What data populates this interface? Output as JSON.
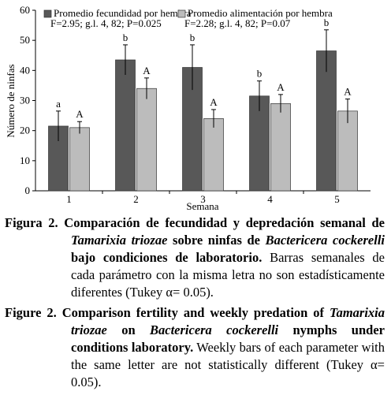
{
  "chart_data": {
    "type": "bar",
    "ylabel": "Número de ninfas",
    "xlabel": "Semana",
    "categories": [
      "1",
      "2",
      "3",
      "4",
      "5"
    ],
    "ylim": [
      0,
      60
    ],
    "yticks": [
      0,
      10,
      20,
      30,
      40,
      50,
      60
    ],
    "series": [
      {
        "name": "Promedio fecundidad por hembra",
        "color": "#585858",
        "stats": "F=2.95; g.l. 4, 82; P=0.025",
        "values": [
          21.5,
          43.5,
          41,
          31.5,
          46.5
        ],
        "errors": [
          5,
          5,
          7.5,
          5,
          7
        ],
        "letters": [
          "a",
          "b",
          "b",
          "b",
          "b"
        ]
      },
      {
        "name": "Promedio alimentación por hembra",
        "color": "#bcbcbc",
        "stats": "F=2.28; g.l. 4, 82; P=0.07",
        "values": [
          21,
          34,
          24,
          29,
          26.5
        ],
        "errors": [
          2,
          3.5,
          3,
          3,
          4
        ],
        "letters": [
          "A",
          "A",
          "A",
          "A",
          "A"
        ]
      }
    ]
  },
  "captions": [
    {
      "segments": [
        {
          "text": "Figura 2.",
          "style": "bold"
        },
        {
          "text": " Comparación de fecundidad y depredación semanal de ",
          "style": "bold"
        },
        {
          "text": "Tamarixia triozae",
          "style": "bold-italic"
        },
        {
          "text": " sobre ninfas de ",
          "style": "bold"
        },
        {
          "text": "Bactericera cockerelli",
          "style": "bold-italic"
        },
        {
          "text": " bajo condiciones de laboratorio.",
          "style": "bold"
        },
        {
          "text": " Barras semanales de cada parámetro con la misma letra no son estadísticamente diferentes (Tukey α= 0.05).",
          "style": "normal"
        }
      ]
    },
    {
      "segments": [
        {
          "text": "Figure 2.",
          "style": "bold"
        },
        {
          "text": " Comparison fertility and weekly predation of ",
          "style": "bold"
        },
        {
          "text": "Tamarixia triozae",
          "style": "bold-italic"
        },
        {
          "text": " on ",
          "style": "bold"
        },
        {
          "text": "Bactericera cockerelli",
          "style": "bold-italic"
        },
        {
          "text": " nymphs under conditions laboratory.",
          "style": "bold"
        },
        {
          "text": " Weekly bars of each parameter with the same letter are not statistically different (Tukey α= 0.05).",
          "style": "normal"
        }
      ]
    }
  ]
}
